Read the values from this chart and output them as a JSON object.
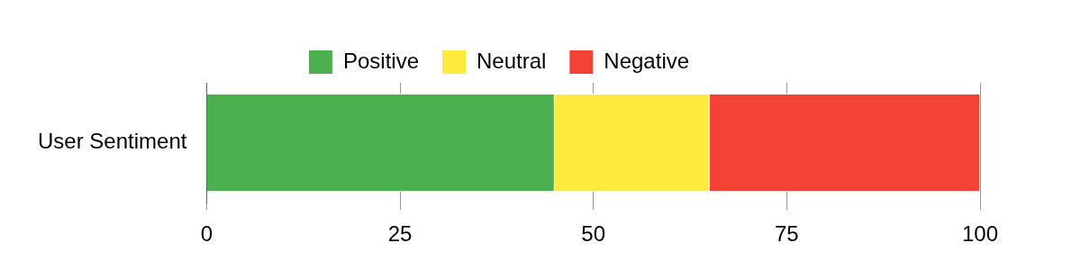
{
  "chart_data": {
    "type": "bar",
    "orientation": "horizontal",
    "stacked": true,
    "categories": [
      "User Sentiment"
    ],
    "series": [
      {
        "name": "Positive",
        "color": "#4caf50",
        "values": [
          45
        ]
      },
      {
        "name": "Neutral",
        "color": "#ffeb3b",
        "values": [
          20
        ]
      },
      {
        "name": "Negative",
        "color": "#f44336",
        "values": [
          35
        ]
      }
    ],
    "xlim": [
      0,
      100
    ],
    "xticks": [
      0,
      25,
      50,
      75,
      100
    ],
    "grid": "x",
    "legend": "top"
  }
}
